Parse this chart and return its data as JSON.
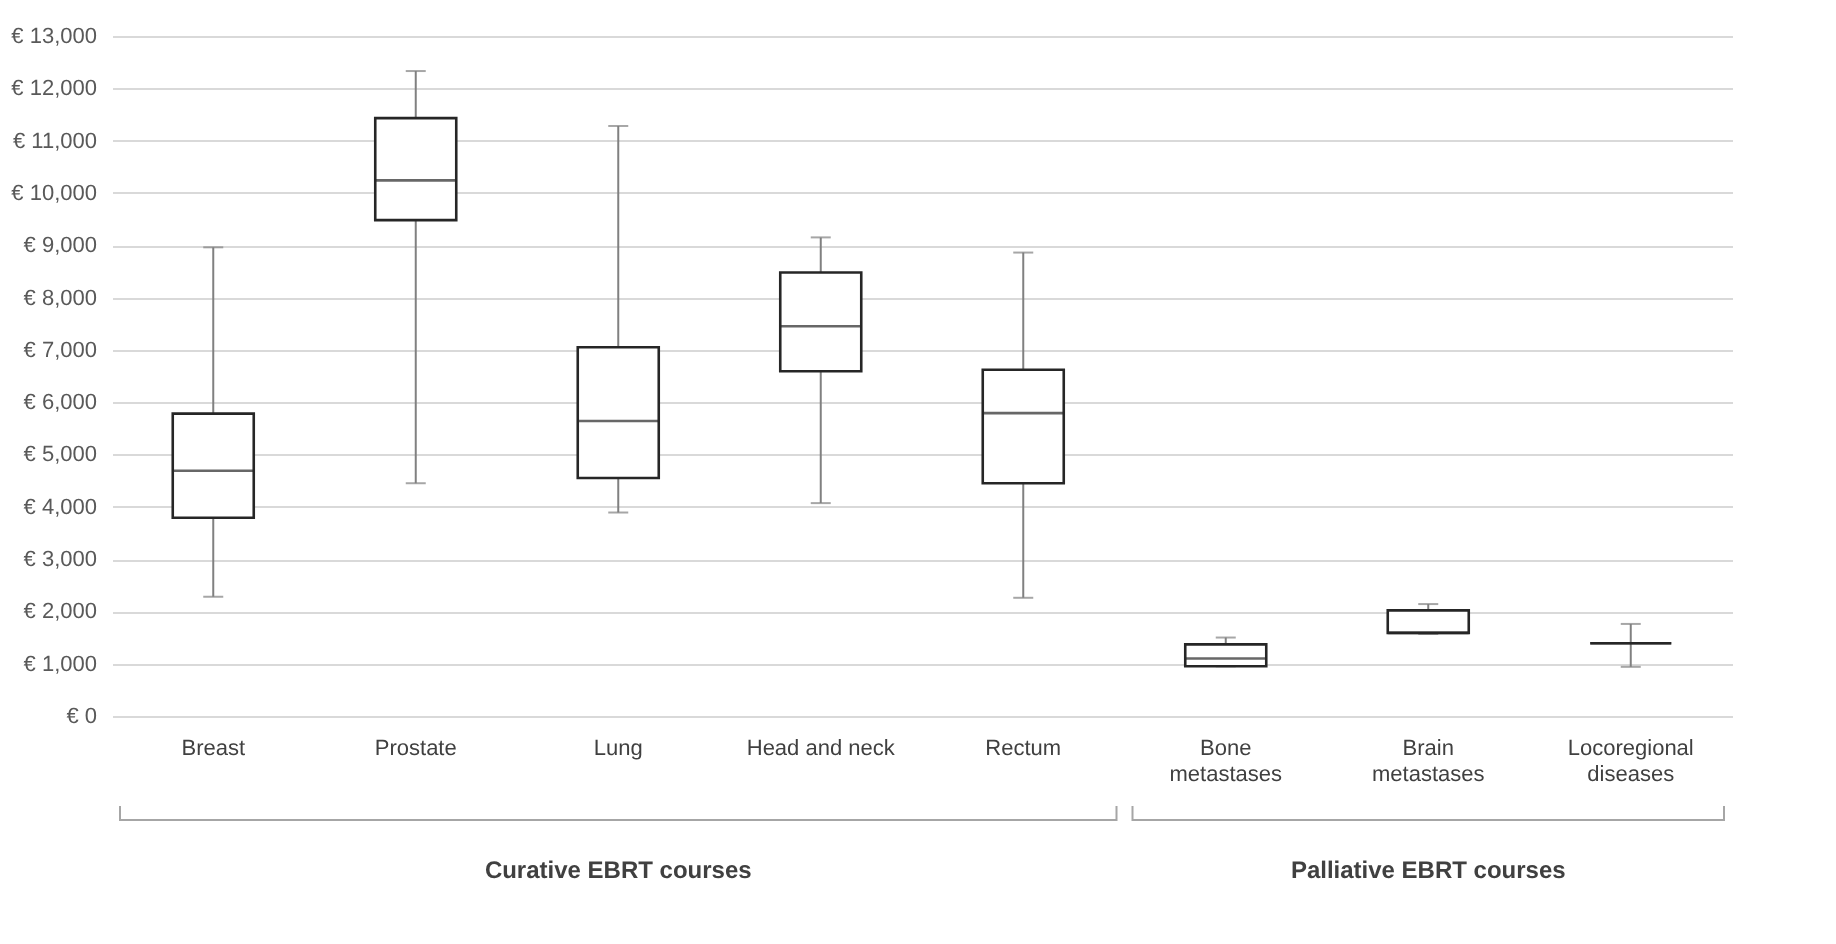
{
  "chart_data": {
    "type": "box",
    "categories": [
      "Breast",
      "Prostate",
      "Lung",
      "Head and neck",
      "Rectum",
      "Bone metastases",
      "Brain metastases",
      "Locoregional diseases"
    ],
    "boxes": [
      {
        "low": 2280,
        "q1": 3790,
        "median": 4690,
        "q3": 5780,
        "high": 8960
      },
      {
        "low": 4450,
        "q1": 9480,
        "median": 10240,
        "q3": 11430,
        "high": 12330
      },
      {
        "low": 3890,
        "q1": 4550,
        "median": 5640,
        "q3": 7050,
        "high": 11280
      },
      {
        "low": 4070,
        "q1": 6590,
        "median": 7450,
        "q3": 8480,
        "high": 9150
      },
      {
        "low": 2260,
        "q1": 4450,
        "median": 5790,
        "q3": 6620,
        "high": 8860
      },
      {
        "low": 950,
        "q1": 950,
        "median": 1100,
        "q3": 1370,
        "high": 1500
      },
      {
        "low": 1570,
        "q1": 1590,
        "median": 1590,
        "q3": 2020,
        "high": 2140
      },
      {
        "low": 940,
        "q1": 1390,
        "median": 1390,
        "q3": 1390,
        "high": 1760
      }
    ],
    "ylim": [
      0,
      13000
    ],
    "yticks": [
      {
        "value": 0,
        "label": "€ 0"
      },
      {
        "value": 1000,
        "label": "€ 1,000"
      },
      {
        "value": 2000,
        "label": "€ 2,000"
      },
      {
        "value": 3000,
        "label": "€ 3,000"
      },
      {
        "value": 4000,
        "label": "€ 4,000"
      },
      {
        "value": 5000,
        "label": "€ 5,000"
      },
      {
        "value": 6000,
        "label": "€ 6,000"
      },
      {
        "value": 7000,
        "label": "€ 7,000"
      },
      {
        "value": 8000,
        "label": "€ 8,000"
      },
      {
        "value": 9000,
        "label": "€ 9,000"
      },
      {
        "value": 10000,
        "label": "€ 10,000"
      },
      {
        "value": 11000,
        "label": "€ 11,000"
      },
      {
        "value": 12000,
        "label": "€ 12,000"
      },
      {
        "value": 13000,
        "label": "€ 13,000"
      }
    ],
    "grid": "y",
    "annotations": [
      "Curative EBRT courses",
      "Palliative EBRT courses"
    ]
  }
}
